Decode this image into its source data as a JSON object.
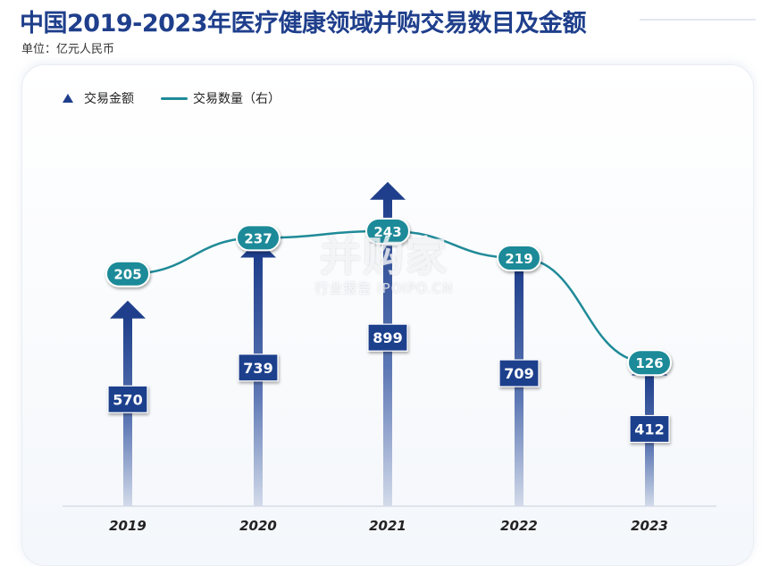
{
  "title": "中国2019-2023年医疗健康领域并购交易数目及金额",
  "unit_label": "单位：亿元人民币",
  "legend": {
    "amount_label": "交易金额",
    "count_label": "交易数量（右）"
  },
  "watermark": {
    "logo": "并购家",
    "sub": "行业报告 IPOIPO.CN"
  },
  "colors": {
    "bar": "#1f3f8c",
    "bar_fade": "#c7d1e4",
    "line": "#1f8a98",
    "label_bg": "#1f3f8c",
    "bubble_bg": "#1f8a98"
  },
  "chart_data": {
    "type": "bar",
    "categories": [
      "2019",
      "2020",
      "2021",
      "2022",
      "2023"
    ],
    "series": [
      {
        "name": "交易金额",
        "kind": "bar-arrow",
        "values": [
          570,
          739,
          899,
          709,
          412
        ]
      },
      {
        "name": "交易数量（右）",
        "kind": "line",
        "axis": "right",
        "values": [
          205,
          237,
          243,
          219,
          126
        ]
      }
    ],
    "ylim_left": [
      0,
      1000
    ],
    "ylim_right": [
      0,
      300
    ],
    "grid": false,
    "legend_position": "top-left"
  }
}
